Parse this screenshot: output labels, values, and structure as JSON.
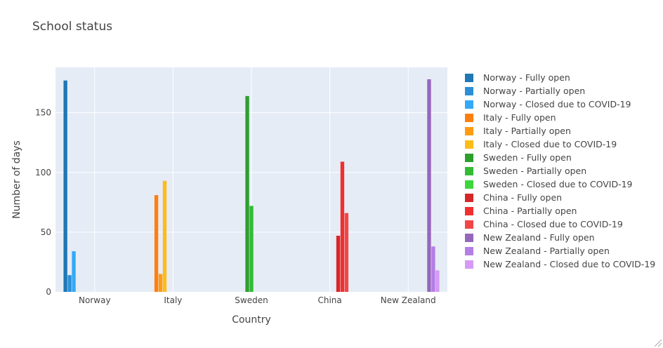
{
  "chart_data": {
    "type": "bar",
    "title": "School status",
    "xlabel": "Country",
    "ylabel": "Number of days",
    "categories": [
      "Norway",
      "Italy",
      "Sweden",
      "China",
      "New Zealand"
    ],
    "ylim": [
      0,
      188
    ],
    "yticks": [
      0,
      50,
      100,
      150
    ],
    "grid": true,
    "legend_position": "right",
    "series": [
      {
        "name": "Norway - Fully open",
        "color": "#1f77b4",
        "values": [
          177,
          null,
          null,
          null,
          null
        ]
      },
      {
        "name": "Norway - Partially open",
        "color": "#2b8fd8",
        "values": [
          14,
          null,
          null,
          null,
          null
        ]
      },
      {
        "name": "Norway - Closed due to COVID-19",
        "color": "#35a9f5",
        "values": [
          34,
          null,
          null,
          null,
          null
        ]
      },
      {
        "name": "Italy - Fully open",
        "color": "#ff7f0e",
        "values": [
          null,
          81,
          null,
          null,
          null
        ]
      },
      {
        "name": "Italy - Partially open",
        "color": "#ff9b12",
        "values": [
          null,
          15,
          null,
          null,
          null
        ]
      },
      {
        "name": "Italy - Closed due to COVID-19",
        "color": "#ffbb1a",
        "values": [
          null,
          93,
          null,
          null,
          null
        ]
      },
      {
        "name": "Sweden - Fully open",
        "color": "#2ca02c",
        "values": [
          null,
          null,
          164,
          null,
          null
        ]
      },
      {
        "name": "Sweden - Partially open",
        "color": "#33bb33",
        "values": [
          null,
          null,
          72,
          null,
          null
        ]
      },
      {
        "name": "Sweden - Closed due to COVID-19",
        "color": "#3dd63d",
        "values": [
          null,
          null,
          0,
          null,
          null
        ]
      },
      {
        "name": "China - Fully open",
        "color": "#d62728",
        "values": [
          null,
          null,
          null,
          47,
          null
        ]
      },
      {
        "name": "China - Partially open",
        "color": "#f0302f",
        "values": [
          null,
          null,
          null,
          109,
          null
        ]
      },
      {
        "name": "China - Closed due to COVID-19",
        "color": "#f24545",
        "values": [
          null,
          null,
          null,
          66,
          null
        ]
      },
      {
        "name": "New Zealand - Fully open",
        "color": "#9467bd",
        "values": [
          null,
          null,
          null,
          null,
          178
        ]
      },
      {
        "name": "New Zealand - Partially open",
        "color": "#b37ee6",
        "values": [
          null,
          null,
          null,
          null,
          38
        ]
      },
      {
        "name": "New Zealand - Closed due to COVID-19",
        "color": "#d49af5",
        "values": [
          null,
          null,
          null,
          null,
          18
        ]
      }
    ]
  }
}
